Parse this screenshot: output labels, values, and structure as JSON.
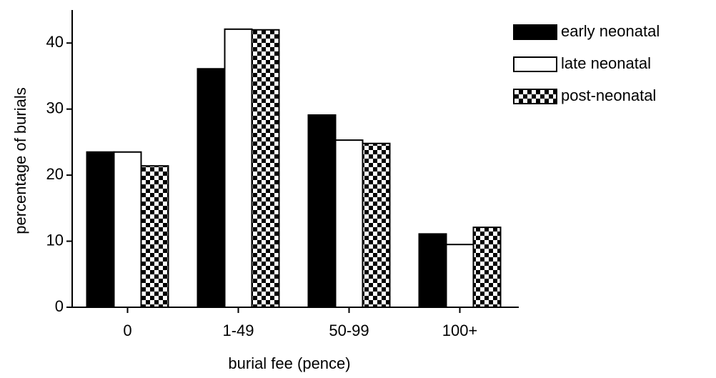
{
  "chart_data": {
    "type": "bar",
    "x_label": "burial fee (pence)",
    "y_label": "percentage of burials",
    "categories": [
      "0",
      "1-49",
      "50-99",
      "100+"
    ],
    "series": [
      {
        "name": "early neonatal",
        "color": "#000000",
        "values": [
          23.5,
          36.1,
          29.1,
          11.1
        ]
      },
      {
        "name": "late neonatal",
        "color": "#ffffff",
        "values": [
          23.5,
          42.1,
          25.3,
          9.5
        ]
      },
      {
        "name": "post-neonatal",
        "color": "#000000",
        "pattern": "checkerboard",
        "values": [
          21.4,
          42.0,
          24.8,
          12.1
        ]
      }
    ],
    "ylim": [
      0,
      45
    ],
    "yticks": [
      0,
      10,
      20,
      30,
      40
    ],
    "legend": "top-right"
  }
}
